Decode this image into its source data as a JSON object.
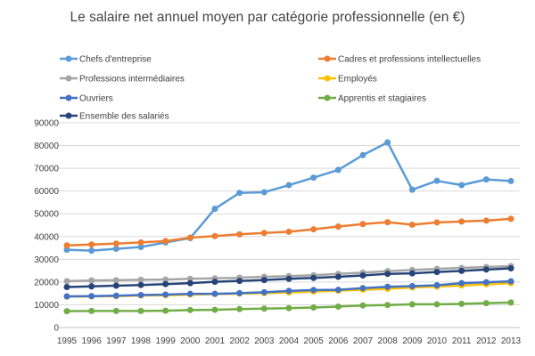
{
  "chart_data": {
    "type": "line",
    "title": "Le salaire net annuel moyen par catégorie professionnelle (en €)",
    "xlabel": "",
    "ylabel": "",
    "categories": [
      "1995",
      "1996",
      "1997",
      "1998",
      "1999",
      "2000",
      "2001",
      "2002",
      "2003",
      "2004",
      "2005",
      "2006",
      "2007",
      "2008",
      "2009",
      "2010",
      "2011",
      "2012",
      "2013"
    ],
    "ylim": [
      0,
      90000
    ],
    "yticks": [
      "0",
      "10000",
      "20000",
      "30000",
      "40000",
      "50000",
      "60000",
      "70000",
      "80000",
      "90000"
    ],
    "grid": true,
    "legend_position": "top",
    "series": [
      {
        "name": "Chefs d'entreprise",
        "color": "#5b9bd5",
        "values": [
          34200,
          33800,
          34600,
          35400,
          37400,
          39300,
          52200,
          59200,
          59500,
          62600,
          65900,
          69300,
          75800,
          81400,
          60600,
          64500,
          62600,
          65100,
          64400
        ]
      },
      {
        "name": "Cadres et professions intellectuelles",
        "color": "#ed7d31",
        "values": [
          36100,
          36500,
          36900,
          37400,
          38000,
          39500,
          40200,
          41000,
          41600,
          42100,
          43200,
          44400,
          45500,
          46300,
          45200,
          46200,
          46600,
          47000,
          47800
        ]
      },
      {
        "name": "Professions intermédiaires",
        "color": "#a5a5a5",
        "values": [
          20400,
          20700,
          20800,
          21000,
          21100,
          21400,
          21600,
          21900,
          22300,
          22600,
          23000,
          23600,
          24100,
          24800,
          25300,
          25800,
          26200,
          26600,
          27000
        ]
      },
      {
        "name": "Employés",
        "color": "#ffc000",
        "values": [
          13600,
          13700,
          13800,
          14100,
          14200,
          14500,
          14700,
          14900,
          15100,
          15400,
          15800,
          16200,
          16600,
          17000,
          17600,
          18000,
          18500,
          19000,
          19500
        ]
      },
      {
        "name": "Ouvriers",
        "color": "#4472c4",
        "values": [
          13700,
          13800,
          14000,
          14300,
          14500,
          14800,
          14800,
          15100,
          15500,
          16100,
          16500,
          16600,
          17300,
          17900,
          18200,
          18600,
          19500,
          19900,
          20300
        ]
      },
      {
        "name": "Apprentis et stagiaires",
        "color": "#70ad47",
        "values": [
          7200,
          7300,
          7300,
          7300,
          7400,
          7700,
          7800,
          8100,
          8300,
          8500,
          8800,
          9200,
          9700,
          9900,
          10200,
          10200,
          10400,
          10700,
          11000
        ]
      },
      {
        "name": "Ensemble des salariés",
        "color": "#264478",
        "values": [
          17800,
          18100,
          18400,
          18700,
          19100,
          19500,
          20100,
          20500,
          20900,
          21400,
          21800,
          22300,
          22900,
          23600,
          23800,
          24400,
          24900,
          25500,
          26000
        ]
      }
    ]
  }
}
